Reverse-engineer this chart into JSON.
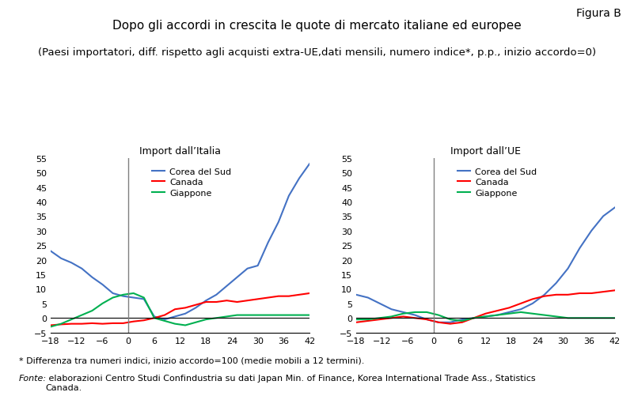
{
  "title": "Dopo gli accordi in crescita le quote di mercato italiane ed europee",
  "subtitle": "(Paesi importatori, diff. rispetto agli acquisti extra-UE,dati mensili, numero indice*, p.p., inizio accordo=0)",
  "figura": "Figura B",
  "left_title": "Import dall’Italia",
  "right_title": "Import dall’UE",
  "footnote1": "* Differenza tra numeri indici, inizio accordo=100 (medie mobili a 12 termini).",
  "footnote2_bold": "Fonte:",
  "footnote2_rest": " elaborazioni Centro Studi Confindustria su dati Japan Min. of Finance, Korea International Trade Ass., Statistics\nCanada.",
  "x_ticks": [
    -18,
    -12,
    -6,
    0,
    6,
    12,
    18,
    24,
    30,
    36,
    42
  ],
  "ylim": [
    -5,
    55
  ],
  "yticks": [
    -5,
    0,
    5,
    10,
    15,
    20,
    25,
    30,
    35,
    40,
    45,
    50,
    55
  ],
  "colors": {
    "corea": "#4472C4",
    "canada": "#FF0000",
    "giappone": "#00B050"
  },
  "legend_labels": [
    "Corea del Sud",
    "Canada",
    "Giappone"
  ],
  "left_corea": [
    23,
    20.5,
    19,
    17,
    14,
    11.5,
    8.5,
    7.5,
    7,
    6.5,
    0.5,
    -0.5,
    0.5,
    1.5,
    3.5,
    6,
    8,
    11,
    14,
    17,
    18,
    26,
    33,
    42,
    48,
    53
  ],
  "left_canada": [
    -2.5,
    -2.2,
    -2,
    -2,
    -1.8,
    -2,
    -1.8,
    -1.8,
    -1.2,
    -0.8,
    0,
    1,
    3,
    3.5,
    4.5,
    5.5,
    5.5,
    6,
    5.5,
    6,
    6.5,
    7,
    7.5,
    7.5,
    8,
    8.5
  ],
  "left_giappone": [
    -3,
    -2,
    -0.5,
    1,
    2.5,
    5,
    7,
    8,
    8.5,
    7,
    0,
    -1,
    -2,
    -2.5,
    -1.5,
    -0.5,
    0,
    0.5,
    1,
    1,
    1,
    1,
    1,
    1,
    1,
    1
  ],
  "right_corea": [
    8,
    7,
    5,
    3,
    2,
    1,
    -0.5,
    -1.5,
    -1.5,
    -0.5,
    0,
    0.5,
    1,
    2,
    3,
    5,
    8,
    12,
    17,
    24,
    30,
    35,
    38
  ],
  "right_canada": [
    -1.5,
    -1,
    -0.5,
    0,
    0.5,
    0,
    -0.5,
    -1.5,
    -2,
    -1.5,
    0,
    1.5,
    2.5,
    3.5,
    5,
    6.5,
    7.5,
    8,
    8,
    8.5,
    8.5,
    9,
    9.5
  ],
  "right_giappone": [
    -0.5,
    -0.5,
    0,
    0.5,
    1.5,
    2,
    2,
    1,
    -0.5,
    -1,
    0,
    0.5,
    1,
    1.5,
    2,
    1.5,
    1,
    0.5,
    0,
    0,
    0,
    0,
    0
  ]
}
